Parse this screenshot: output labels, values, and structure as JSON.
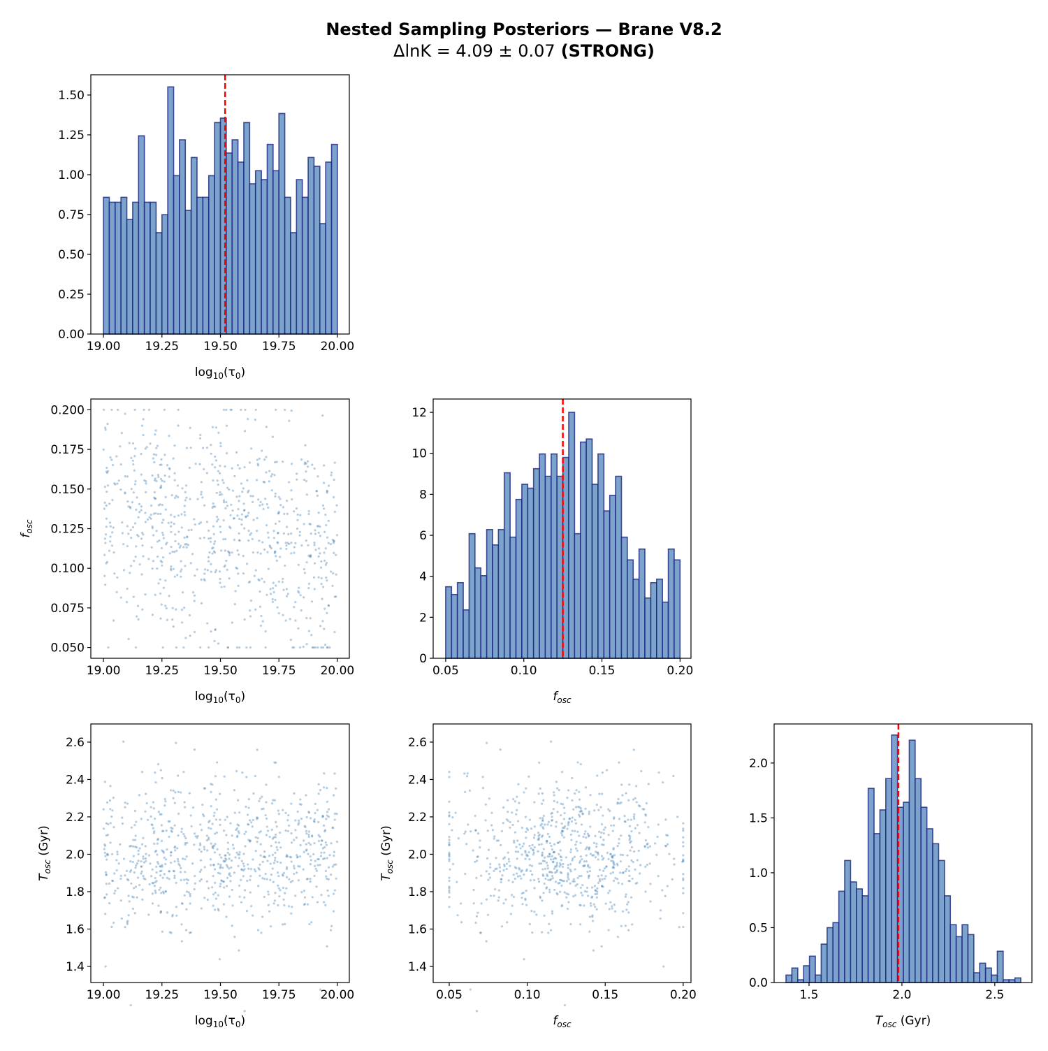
{
  "title": {
    "line1": "Nested Sampling Posteriors — Brane V8.2",
    "line2_math": "ΔlnK = 4.09 ± 0.07",
    "line2_bold": "(STRONG)"
  },
  "colors": {
    "hist_fill": "#7ba3cc",
    "hist_edge": "#1a237e",
    "scatter": "#4682b4",
    "truth_line": "#ff0000",
    "axis": "#000000"
  },
  "chart_data": [
    {
      "id": "hist-log-tau0",
      "type": "bar",
      "row": 0,
      "col": 0,
      "xlabel": [
        {
          "t": "log"
        },
        {
          "t": "10",
          "sub": true
        },
        {
          "t": "(τ"
        },
        {
          "t": "0",
          "sub": true
        },
        {
          "t": ")"
        }
      ],
      "xlim": [
        18.946,
        20.051
      ],
      "ylim": [
        0,
        1.627
      ],
      "bin_range": [
        19.0,
        20.0
      ],
      "values": [
        0.858,
        0.827,
        0.827,
        0.858,
        0.719,
        0.827,
        1.244,
        0.827,
        0.827,
        0.636,
        0.749,
        1.551,
        0.994,
        1.219,
        0.776,
        1.108,
        0.858,
        0.858,
        0.994,
        1.327,
        1.355,
        1.136,
        1.219,
        1.079,
        1.327,
        0.943,
        1.025,
        0.969,
        1.19,
        1.025,
        1.384,
        0.858,
        0.636,
        0.969,
        0.858,
        1.108,
        1.053,
        0.693,
        1.079,
        1.19
      ],
      "vline": 19.52,
      "xticks": [
        {
          "v": 19.0,
          "l": "19.00"
        },
        {
          "v": 19.25,
          "l": "19.25"
        },
        {
          "v": 19.5,
          "l": "19.50"
        },
        {
          "v": 19.75,
          "l": "19.75"
        },
        {
          "v": 20.0,
          "l": "20.00"
        }
      ],
      "yticks": [
        {
          "v": 0,
          "l": "0.00"
        },
        {
          "v": 0.25,
          "l": "0.25"
        },
        {
          "v": 0.5,
          "l": "0.50"
        },
        {
          "v": 0.75,
          "l": "0.75"
        },
        {
          "v": 1.0,
          "l": "1.00"
        },
        {
          "v": 1.25,
          "l": "1.25"
        },
        {
          "v": 1.5,
          "l": "1.50"
        }
      ]
    },
    {
      "id": "scatter-tau0-fosc",
      "type": "scatter",
      "row": 1,
      "col": 0,
      "xlabel": [
        {
          "t": "log"
        },
        {
          "t": "10",
          "sub": true
        },
        {
          "t": "(τ"
        },
        {
          "t": "0",
          "sub": true
        },
        {
          "t": ")"
        }
      ],
      "ylabel": [
        {
          "t": "f",
          "i": true
        },
        {
          "t": "osc",
          "sub": true,
          "i": true
        }
      ],
      "xlim": [
        18.946,
        20.051
      ],
      "ylim": [
        0.0432,
        0.2068
      ],
      "xticks": [
        {
          "v": 19.0,
          "l": "19.00"
        },
        {
          "v": 19.25,
          "l": "19.25"
        },
        {
          "v": 19.5,
          "l": "19.50"
        },
        {
          "v": 19.75,
          "l": "19.75"
        },
        {
          "v": 20.0,
          "l": "20.00"
        }
      ],
      "yticks": [
        {
          "v": 0.05,
          "l": "0.050"
        },
        {
          "v": 0.075,
          "l": "0.075"
        },
        {
          "v": 0.1,
          "l": "0.100"
        },
        {
          "v": 0.125,
          "l": "0.125"
        },
        {
          "v": 0.15,
          "l": "0.150"
        },
        {
          "v": 0.175,
          "l": "0.175"
        },
        {
          "v": 0.2,
          "l": "0.200"
        }
      ]
    },
    {
      "id": "hist-fosc",
      "type": "bar",
      "row": 1,
      "col": 1,
      "xlabel": [
        {
          "t": "f",
          "i": true
        },
        {
          "t": "osc",
          "sub": true,
          "i": true
        }
      ],
      "xlim": [
        0.042,
        0.207
      ],
      "ylim": [
        0,
        12.65
      ],
      "bin_range": [
        0.05,
        0.2
      ],
      "values": [
        3.49,
        3.11,
        3.69,
        2.36,
        6.08,
        4.41,
        4.03,
        6.28,
        5.53,
        6.28,
        9.05,
        5.91,
        7.75,
        8.49,
        8.3,
        9.25,
        9.97,
        8.88,
        9.97,
        8.88,
        9.8,
        12.0,
        6.08,
        10.55,
        10.7,
        8.49,
        9.97,
        7.19,
        7.95,
        8.88,
        5.91,
        4.8,
        3.86,
        5.33,
        2.94,
        3.69,
        3.86,
        2.74,
        5.33,
        4.8
      ],
      "vline": 0.125,
      "xticks": [
        {
          "v": 0.05,
          "l": "0.05"
        },
        {
          "v": 0.1,
          "l": "0.10"
        },
        {
          "v": 0.15,
          "l": "0.15"
        },
        {
          "v": 0.2,
          "l": "0.20"
        }
      ],
      "yticks": [
        {
          "v": 0,
          "l": "0"
        },
        {
          "v": 2,
          "l": "2"
        },
        {
          "v": 4,
          "l": "4"
        },
        {
          "v": 6,
          "l": "6"
        },
        {
          "v": 8,
          "l": "8"
        },
        {
          "v": 10,
          "l": "10"
        },
        {
          "v": 12,
          "l": "12"
        }
      ]
    },
    {
      "id": "scatter-tau0-tosc",
      "type": "scatter",
      "row": 2,
      "col": 0,
      "xlabel": [
        {
          "t": "log"
        },
        {
          "t": "10",
          "sub": true
        },
        {
          "t": "(τ"
        },
        {
          "t": "0",
          "sub": true
        },
        {
          "t": ")"
        }
      ],
      "ylabel": [
        {
          "t": "T",
          "i": true
        },
        {
          "t": "osc",
          "sub": true,
          "i": true
        },
        {
          "t": " (Gyr)"
        }
      ],
      "xlim": [
        18.946,
        20.051
      ],
      "ylim": [
        1.314,
        2.697
      ],
      "xticks": [
        {
          "v": 19.0,
          "l": "19.00"
        },
        {
          "v": 19.25,
          "l": "19.25"
        },
        {
          "v": 19.5,
          "l": "19.50"
        },
        {
          "v": 19.75,
          "l": "19.75"
        },
        {
          "v": 20.0,
          "l": "20.00"
        }
      ],
      "yticks": [
        {
          "v": 1.4,
          "l": "1.4"
        },
        {
          "v": 1.6,
          "l": "1.6"
        },
        {
          "v": 1.8,
          "l": "1.8"
        },
        {
          "v": 2.0,
          "l": "2.0"
        },
        {
          "v": 2.2,
          "l": "2.2"
        },
        {
          "v": 2.4,
          "l": "2.4"
        },
        {
          "v": 2.6,
          "l": "2.6"
        }
      ]
    },
    {
      "id": "scatter-fosc-tosc",
      "type": "scatter",
      "row": 2,
      "col": 1,
      "xlabel": [
        {
          "t": "f",
          "i": true
        },
        {
          "t": "osc",
          "sub": true,
          "i": true
        }
      ],
      "ylabel": [
        {
          "t": "T",
          "i": true
        },
        {
          "t": "osc",
          "sub": true,
          "i": true
        },
        {
          "t": " (Gyr)"
        }
      ],
      "xlim": [
        0.0397,
        0.205
      ],
      "ylim": [
        1.314,
        2.697
      ],
      "xticks": [
        {
          "v": 0.05,
          "l": "0.05"
        },
        {
          "v": 0.1,
          "l": "0.10"
        },
        {
          "v": 0.15,
          "l": "0.15"
        },
        {
          "v": 0.2,
          "l": "0.20"
        }
      ],
      "yticks": [
        {
          "v": 1.4,
          "l": "1.4"
        },
        {
          "v": 1.6,
          "l": "1.6"
        },
        {
          "v": 1.8,
          "l": "1.8"
        },
        {
          "v": 2.0,
          "l": "2.0"
        },
        {
          "v": 2.2,
          "l": "2.2"
        },
        {
          "v": 2.4,
          "l": "2.4"
        },
        {
          "v": 2.6,
          "l": "2.6"
        }
      ]
    },
    {
      "id": "hist-tosc",
      "type": "bar",
      "row": 2,
      "col": 2,
      "xlabel": [
        {
          "t": "T",
          "i": true
        },
        {
          "t": "osc",
          "sub": true,
          "i": true
        },
        {
          "t": " (Gyr)"
        }
      ],
      "xlim": [
        1.312,
        2.7
      ],
      "ylim": [
        0,
        2.356
      ],
      "bin_range": [
        1.376,
        2.64
      ],
      "values": [
        0.068,
        0.132,
        0.025,
        0.153,
        0.24,
        0.068,
        0.35,
        0.5,
        0.546,
        0.832,
        1.112,
        0.917,
        0.853,
        0.79,
        1.769,
        1.357,
        1.573,
        1.858,
        2.255,
        1.597,
        1.643,
        2.208,
        1.858,
        1.597,
        1.401,
        1.265,
        1.112,
        0.79,
        0.527,
        0.418,
        0.527,
        0.437,
        0.089,
        0.176,
        0.132,
        0.068,
        0.285,
        0.025,
        0.025,
        0.042
      ],
      "vline": 1.981,
      "xticks": [
        {
          "v": 1.5,
          "l": "1.5"
        },
        {
          "v": 2.0,
          "l": "2.0"
        },
        {
          "v": 2.5,
          "l": "2.5"
        }
      ],
      "yticks": [
        {
          "v": 0,
          "l": "0.0"
        },
        {
          "v": 0.5,
          "l": "0.5"
        },
        {
          "v": 1.0,
          "l": "1.0"
        },
        {
          "v": 1.5,
          "l": "1.5"
        },
        {
          "v": 2.0,
          "l": "2.0"
        }
      ]
    }
  ]
}
